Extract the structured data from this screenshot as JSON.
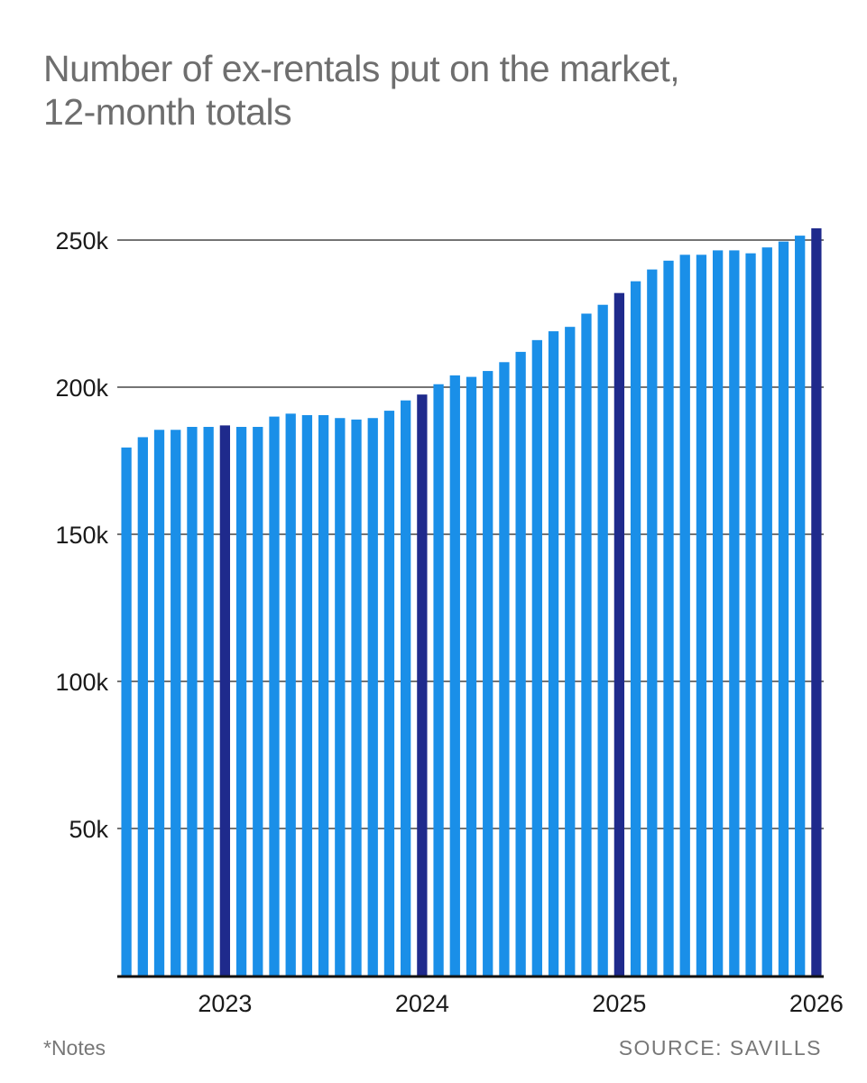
{
  "title_lines": [
    "Number of ex-rentals put on the market,",
    "12-month totals"
  ],
  "notes": "*Notes",
  "source": "SOURCE: SAVILLS",
  "colors": {
    "bar": "#1a8fe8",
    "highlight": "#1f2a8c",
    "title": "#6e6e6e",
    "grid": "#222222"
  },
  "chart_data": {
    "type": "bar",
    "title": "Number of ex-rentals put on the market, 12-month totals",
    "y_ticks": [
      {
        "value": 50000,
        "label": "50k"
      },
      {
        "value": 100000,
        "label": "100k"
      },
      {
        "value": 150000,
        "label": "150k"
      },
      {
        "value": 200000,
        "label": "200k"
      },
      {
        "value": 250000,
        "label": "250k"
      }
    ],
    "x_ticks": [
      {
        "index": 6,
        "label": "2023"
      },
      {
        "index": 18,
        "label": "2024"
      },
      {
        "index": 30,
        "label": "2025"
      },
      {
        "index": 42,
        "label": "2026"
      }
    ],
    "ylim": [
      0,
      260000
    ],
    "grid": true,
    "highlighted_indices": [
      6,
      18,
      30,
      42
    ],
    "values": [
      179500,
      183000,
      185500,
      185500,
      186500,
      186500,
      187000,
      186500,
      186500,
      190000,
      191000,
      190500,
      190500,
      189500,
      189000,
      189500,
      192000,
      195500,
      197500,
      201000,
      204000,
      203500,
      205500,
      208500,
      212000,
      216000,
      219000,
      220500,
      225000,
      228000,
      232000,
      236000,
      240000,
      243000,
      245000,
      245000,
      246500,
      246500,
      245500,
      247500,
      249500,
      251500,
      254000
    ]
  }
}
